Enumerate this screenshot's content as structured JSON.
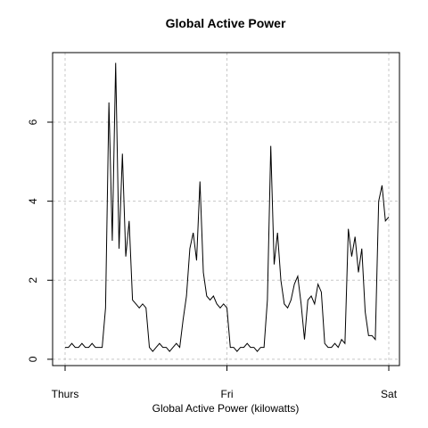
{
  "chart_data": {
    "type": "line",
    "title": "Global Active Power",
    "xlabel": "Global Active Power (kilowatts)",
    "x": [
      0,
      30,
      60,
      90,
      120,
      150,
      180,
      210,
      240,
      270,
      300,
      330,
      360,
      390,
      420,
      450,
      480,
      510,
      540,
      570,
      600,
      630,
      660,
      690,
      720,
      750,
      780,
      810,
      840,
      870,
      900,
      930,
      960,
      990,
      1020,
      1050,
      1080,
      1110,
      1140,
      1170,
      1200,
      1230,
      1260,
      1290,
      1320,
      1350,
      1380,
      1410,
      1440,
      1470,
      1500,
      1530,
      1560,
      1590,
      1620,
      1650,
      1680,
      1710,
      1740,
      1770,
      1800,
      1830,
      1860,
      1890,
      1920,
      1950,
      1980,
      2010,
      2040,
      2070,
      2100,
      2130,
      2160,
      2190,
      2220,
      2250,
      2280,
      2310,
      2340,
      2370,
      2400,
      2430,
      2460,
      2490,
      2520,
      2550,
      2580,
      2610,
      2640,
      2670,
      2700,
      2730,
      2760,
      2790,
      2820,
      2850,
      2880
    ],
    "series": [
      {
        "name": "Global Active Power",
        "color": "#000000",
        "values": [
          0.3,
          0.3,
          0.4,
          0.3,
          0.3,
          0.4,
          0.3,
          0.3,
          0.4,
          0.3,
          0.3,
          0.3,
          1.3,
          6.5,
          3.0,
          7.5,
          2.8,
          5.2,
          2.6,
          3.5,
          1.5,
          1.4,
          1.3,
          1.4,
          1.3,
          0.3,
          0.2,
          0.3,
          0.4,
          0.3,
          0.3,
          0.2,
          0.3,
          0.4,
          0.3,
          1.0,
          1.6,
          2.8,
          3.2,
          2.5,
          4.5,
          2.2,
          1.6,
          1.5,
          1.6,
          1.4,
          1.3,
          1.4,
          1.3,
          0.3,
          0.3,
          0.2,
          0.3,
          0.3,
          0.4,
          0.3,
          0.3,
          0.2,
          0.3,
          0.3,
          1.5,
          5.4,
          2.4,
          3.2,
          2.0,
          1.4,
          1.3,
          1.5,
          1.9,
          2.1,
          1.4,
          0.5,
          1.5,
          1.6,
          1.4,
          1.9,
          1.7,
          0.4,
          0.3,
          0.3,
          0.4,
          0.3,
          0.5,
          0.4,
          3.3,
          2.6,
          3.1,
          2.2,
          2.8,
          1.2,
          0.6,
          0.6,
          0.5,
          4.0,
          4.4,
          3.5,
          3.6
        ]
      }
    ],
    "xlim": [
      -111,
      2975
    ],
    "xticks": [
      {
        "value": 0,
        "label": "Thurs"
      },
      {
        "value": 1440,
        "label": "Fri"
      },
      {
        "value": 2880,
        "label": "Sat"
      }
    ],
    "ylim": [
      -0.16,
      7.76
    ],
    "yticks": [
      0,
      2,
      4,
      6
    ],
    "grid": true
  }
}
